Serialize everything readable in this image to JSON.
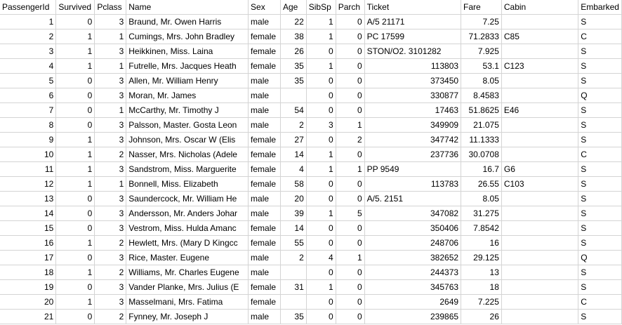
{
  "columns": [
    "PassengerId",
    "Survived",
    "Pclass",
    "Name",
    "Sex",
    "Age",
    "SibSp",
    "Parch",
    "Ticket",
    "Fare",
    "Cabin",
    "Embarked"
  ],
  "column_align": [
    "num",
    "num",
    "num",
    "txt",
    "txt",
    "num",
    "num",
    "num",
    "mixed",
    "num",
    "txt",
    "txt"
  ],
  "rows": [
    [
      "1",
      "0",
      "3",
      "Braund, Mr. Owen Harris",
      "male",
      "22",
      "1",
      "0",
      "A/5 21171",
      "7.25",
      "",
      "S"
    ],
    [
      "2",
      "1",
      "1",
      "Cumings, Mrs. John Bradley",
      "female",
      "38",
      "1",
      "0",
      "PC 17599",
      "71.2833",
      "C85",
      "C"
    ],
    [
      "3",
      "1",
      "3",
      "Heikkinen, Miss. Laina",
      "female",
      "26",
      "0",
      "0",
      "STON/O2. 3101282",
      "7.925",
      "",
      "S"
    ],
    [
      "4",
      "1",
      "1",
      "Futrelle, Mrs. Jacques Heath",
      "female",
      "35",
      "1",
      "0",
      "113803",
      "53.1",
      "C123",
      "S"
    ],
    [
      "5",
      "0",
      "3",
      "Allen, Mr. William Henry",
      "male",
      "35",
      "0",
      "0",
      "373450",
      "8.05",
      "",
      "S"
    ],
    [
      "6",
      "0",
      "3",
      "Moran, Mr. James",
      "male",
      "",
      "0",
      "0",
      "330877",
      "8.4583",
      "",
      "Q"
    ],
    [
      "7",
      "0",
      "1",
      "McCarthy, Mr. Timothy J",
      "male",
      "54",
      "0",
      "0",
      "17463",
      "51.8625",
      "E46",
      "S"
    ],
    [
      "8",
      "0",
      "3",
      "Palsson, Master. Gosta Leon",
      "male",
      "2",
      "3",
      "1",
      "349909",
      "21.075",
      "",
      "S"
    ],
    [
      "9",
      "1",
      "3",
      "Johnson, Mrs. Oscar W (Elis",
      "female",
      "27",
      "0",
      "2",
      "347742",
      "11.1333",
      "",
      "S"
    ],
    [
      "10",
      "1",
      "2",
      "Nasser, Mrs. Nicholas (Adele",
      "female",
      "14",
      "1",
      "0",
      "237736",
      "30.0708",
      "",
      "C"
    ],
    [
      "11",
      "1",
      "3",
      "Sandstrom, Miss. Marguerite",
      "female",
      "4",
      "1",
      "1",
      "PP 9549",
      "16.7",
      "G6",
      "S"
    ],
    [
      "12",
      "1",
      "1",
      "Bonnell, Miss. Elizabeth",
      "female",
      "58",
      "0",
      "0",
      "113783",
      "26.55",
      "C103",
      "S"
    ],
    [
      "13",
      "0",
      "3",
      "Saundercock, Mr. William He",
      "male",
      "20",
      "0",
      "0",
      "A/5. 2151",
      "8.05",
      "",
      "S"
    ],
    [
      "14",
      "0",
      "3",
      "Andersson, Mr. Anders Johar",
      "male",
      "39",
      "1",
      "5",
      "347082",
      "31.275",
      "",
      "S"
    ],
    [
      "15",
      "0",
      "3",
      "Vestrom, Miss. Hulda Amanc",
      "female",
      "14",
      "0",
      "0",
      "350406",
      "7.8542",
      "",
      "S"
    ],
    [
      "16",
      "1",
      "2",
      "Hewlett, Mrs. (Mary D Kingcc",
      "female",
      "55",
      "0",
      "0",
      "248706",
      "16",
      "",
      "S"
    ],
    [
      "17",
      "0",
      "3",
      "Rice, Master. Eugene",
      "male",
      "2",
      "4",
      "1",
      "382652",
      "29.125",
      "",
      "Q"
    ],
    [
      "18",
      "1",
      "2",
      "Williams, Mr. Charles Eugene",
      "male",
      "",
      "0",
      "0",
      "244373",
      "13",
      "",
      "S"
    ],
    [
      "19",
      "0",
      "3",
      "Vander Planke, Mrs. Julius (E",
      "female",
      "31",
      "1",
      "0",
      "345763",
      "18",
      "",
      "S"
    ],
    [
      "20",
      "1",
      "3",
      "Masselmani, Mrs. Fatima",
      "female",
      "",
      "0",
      "0",
      "2649",
      "7.225",
      "",
      "C"
    ],
    [
      "21",
      "0",
      "2",
      "Fynney, Mr. Joseph J",
      "male",
      "35",
      "0",
      "0",
      "239865",
      "26",
      "",
      "S"
    ]
  ]
}
